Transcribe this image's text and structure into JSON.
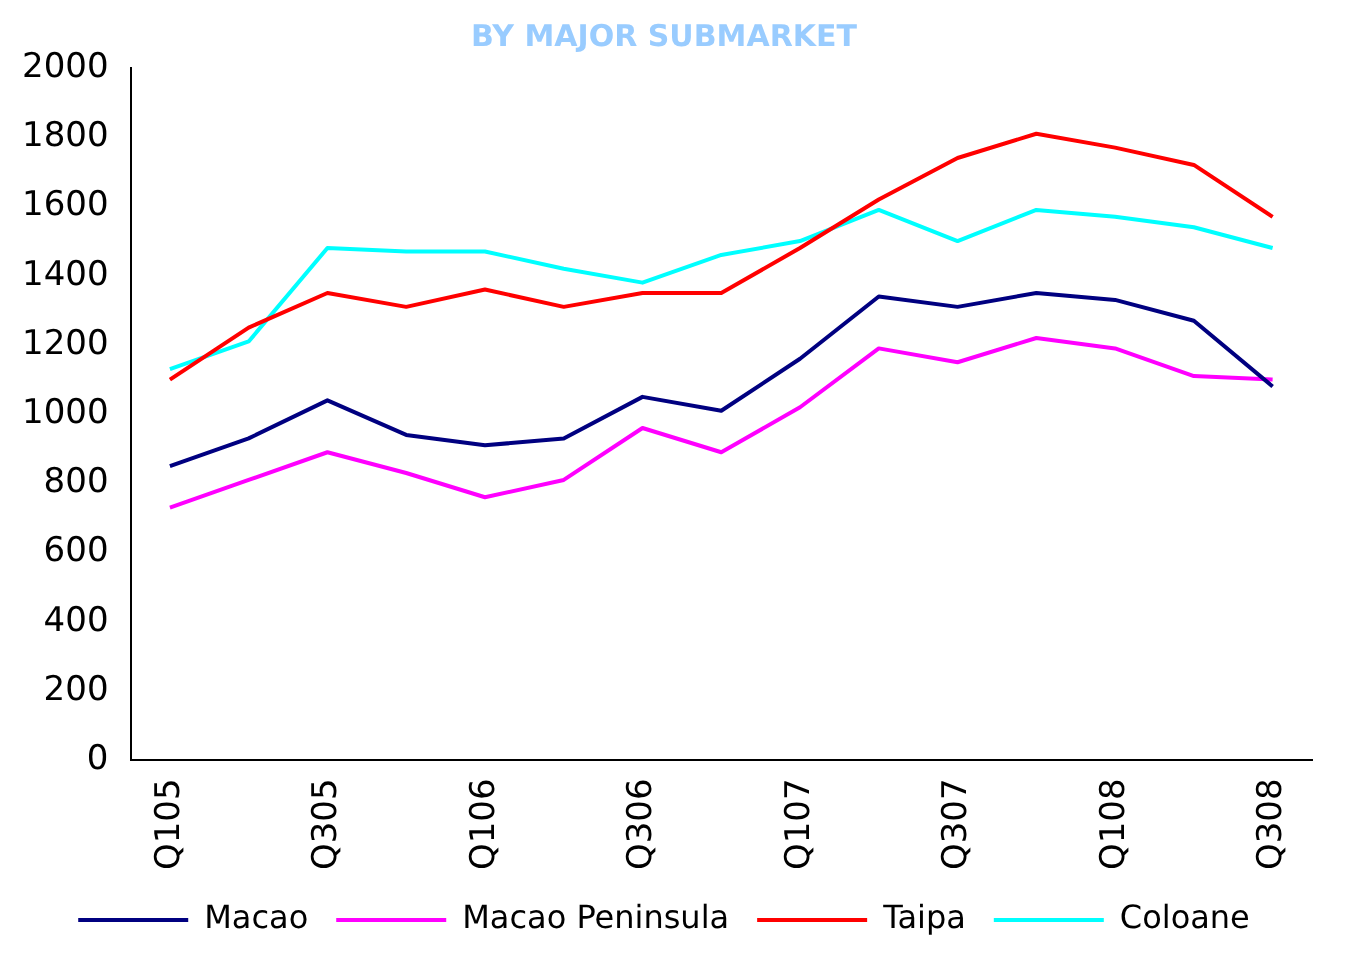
{
  "chart_data": {
    "type": "line",
    "title": "BY MAJOR SUBMARKET",
    "categories": [
      "Q105",
      null,
      "Q305",
      null,
      "Q106",
      null,
      "Q306",
      null,
      "Q107",
      null,
      "Q307",
      null,
      "Q108",
      null,
      "Q308"
    ],
    "series": [
      {
        "name": "Macao",
        "color": "#000080",
        "values": [
          850,
          930,
          1040,
          940,
          910,
          930,
          1050,
          1010,
          1160,
          1340,
          1310,
          1350,
          1330,
          1270,
          1080
        ]
      },
      {
        "name": "Macao Peninsula",
        "color": "#ff00ff",
        "values": [
          730,
          810,
          890,
          830,
          760,
          810,
          960,
          890,
          1020,
          1190,
          1150,
          1220,
          1190,
          1110,
          1100
        ]
      },
      {
        "name": "Taipa",
        "color": "#ff0000",
        "values": [
          1100,
          1250,
          1350,
          1310,
          1360,
          1310,
          1350,
          1350,
          1480,
          1620,
          1740,
          1810,
          1770,
          1720,
          1570
        ]
      },
      {
        "name": "Coloane",
        "color": "#00ffff",
        "values": [
          1130,
          1210,
          1480,
          1470,
          1470,
          1420,
          1380,
          1460,
          1500,
          1590,
          1500,
          1590,
          1570,
          1540,
          1480
        ]
      }
    ],
    "ylim": [
      0,
      2000
    ],
    "yticks": [
      0,
      200,
      400,
      600,
      800,
      1000,
      1200,
      1400,
      1600,
      1800,
      2000
    ],
    "grid": false,
    "legend": "bottom",
    "marker": "none",
    "line_style": "solid"
  }
}
